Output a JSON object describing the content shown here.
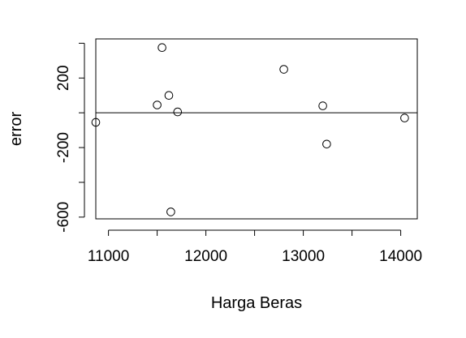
{
  "chart_data": {
    "type": "scatter",
    "xlabel": "Harga Beras",
    "ylabel": "error",
    "xlim": [
      10870,
      14170
    ],
    "ylim": [
      -610,
      425
    ],
    "x_ticks": [
      11000,
      11500,
      12000,
      12500,
      13000,
      13500,
      14000
    ],
    "x_tick_labels": [
      {
        "value": 11000,
        "label": "11000"
      },
      {
        "value": 12000,
        "label": "12000"
      },
      {
        "value": 13000,
        "label": "13000"
      },
      {
        "value": 14000,
        "label": "14000"
      }
    ],
    "y_ticks": [
      -600,
      -400,
      -200,
      0,
      200,
      400
    ],
    "y_tick_labels": [
      {
        "value": -600,
        "label": "-600"
      },
      {
        "value": -200,
        "label": "-200"
      },
      {
        "value": 200,
        "label": "200"
      }
    ],
    "reference_line": {
      "y": 0
    },
    "points": [
      {
        "x": 10870,
        "y": -55
      },
      {
        "x": 11500,
        "y": 45
      },
      {
        "x": 11550,
        "y": 375
      },
      {
        "x": 11620,
        "y": 100
      },
      {
        "x": 11640,
        "y": -570
      },
      {
        "x": 11710,
        "y": 5
      },
      {
        "x": 12800,
        "y": 250
      },
      {
        "x": 13200,
        "y": 40
      },
      {
        "x": 13240,
        "y": -180
      },
      {
        "x": 14040,
        "y": -30
      }
    ],
    "grid": false,
    "legend": "none"
  }
}
